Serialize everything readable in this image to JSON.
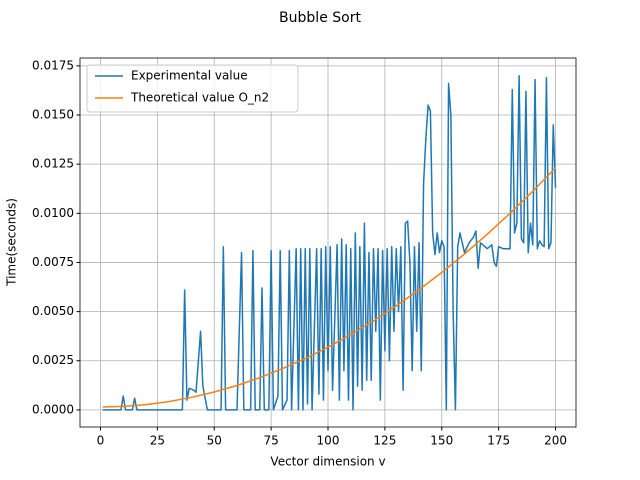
{
  "chart_data": {
    "type": "line",
    "title": "Bubble Sort",
    "xlabel": "Vector dimension v",
    "ylabel": "Time(seconds)",
    "xlim": [
      -9,
      209
    ],
    "ylim": [
      -0.00087,
      0.0179
    ],
    "xticks": [
      0,
      25,
      50,
      75,
      100,
      125,
      150,
      175,
      200
    ],
    "yticks": [
      {
        "value": 0,
        "label": "0.0000"
      },
      {
        "value": 0.0025,
        "label": "0.0025"
      },
      {
        "value": 0.005,
        "label": "0.0050"
      },
      {
        "value": 0.0075,
        "label": "0.0075"
      },
      {
        "value": 0.01,
        "label": "0.0100"
      },
      {
        "value": 0.0125,
        "label": "0.0125"
      },
      {
        "value": 0.015,
        "label": "0.0150"
      },
      {
        "value": 0.0175,
        "label": "0.0175"
      }
    ],
    "grid": true,
    "legend": "upper left",
    "series": [
      {
        "name": "Experimental value",
        "color": "#1f77b4",
        "x": [
          1,
          5,
          9,
          10,
          11,
          14,
          15,
          16,
          20,
          30,
          36,
          37,
          38,
          39,
          41,
          42,
          44,
          45,
          47,
          52,
          53,
          54,
          55,
          60,
          62,
          63,
          66,
          67,
          68,
          70,
          71,
          72,
          74,
          75,
          76,
          78,
          79,
          80,
          82,
          83,
          84,
          86,
          87,
          88,
          89,
          90,
          91,
          92,
          93,
          95,
          96,
          97,
          98,
          99,
          100,
          101,
          102,
          104,
          105,
          106,
          107,
          108,
          109,
          110,
          111,
          112,
          113,
          114,
          115,
          116,
          117,
          118,
          119,
          120,
          121,
          122,
          123,
          124,
          125,
          126,
          127,
          128,
          129,
          130,
          131,
          132,
          133,
          134,
          135,
          136,
          137,
          138,
          139,
          140,
          141,
          142,
          143,
          144,
          145,
          146,
          147,
          148,
          149,
          150,
          151,
          152,
          153,
          154,
          155,
          156,
          157,
          158,
          160,
          162,
          164,
          165,
          166,
          167,
          169,
          170,
          172,
          173,
          174,
          175,
          177,
          179,
          180,
          181,
          182,
          183,
          184,
          185,
          186,
          187,
          188,
          189,
          190,
          191,
          192,
          193,
          194,
          195,
          196,
          197,
          198,
          199,
          200
        ],
        "values": [
          0,
          0,
          0,
          0.0007,
          0,
          0,
          0.0006,
          0,
          0,
          0,
          0,
          0.0061,
          0.0005,
          0.0011,
          0.001,
          0.0009,
          0.004,
          0.0012,
          0,
          0,
          0,
          0.0083,
          0,
          0,
          0.008,
          0,
          0,
          0.0081,
          0,
          0,
          0.0062,
          0,
          0,
          0.0081,
          0,
          0.0007,
          0.0081,
          0,
          0.0005,
          0.0081,
          0,
          0.0082,
          0,
          0.0082,
          0,
          0.0082,
          0.0003,
          0.0082,
          0,
          0.0082,
          0.0008,
          0.0082,
          0.0005,
          0.0083,
          0.002,
          0.0083,
          0.001,
          0.0084,
          0.0005,
          0.0087,
          0.002,
          0.0084,
          0.0005,
          0.0082,
          0,
          0.009,
          0.0012,
          0.0083,
          0.001,
          0.0095,
          0.0015,
          0.008,
          0.0015,
          0.0082,
          0.004,
          0.0082,
          0.0005,
          0.0081,
          0.003,
          0.0082,
          0.0025,
          0.0083,
          0.004,
          0.0082,
          0.005,
          0.0083,
          0.001,
          0.0095,
          0.0096,
          0.0075,
          0.002,
          0.0083,
          0.004,
          0.0085,
          0.002,
          0.0115,
          0.0138,
          0.0155,
          0.0152,
          0.009,
          0.0079,
          0.009,
          0.008,
          0.0086,
          0.0083,
          0,
          0.0166,
          0.015,
          0.005,
          0,
          0.0083,
          0.009,
          0.008,
          0.0085,
          0.0088,
          0.0091,
          0.0072,
          0.0085,
          0.0083,
          0.0082,
          0.0084,
          0.0075,
          0.0073,
          0.0083,
          0.0082,
          0.0082,
          0.0082,
          0.0163,
          0.009,
          0.0095,
          0.017,
          0.0087,
          0.0085,
          0.0162,
          0.008,
          0.0095,
          0.0084,
          0.0168,
          0.0082,
          0.0086,
          0.0084,
          0.0083,
          0.0169,
          0.0082,
          0.0085,
          0.0145,
          0.0113
        ]
      },
      {
        "name": "Theoretical value O_n2",
        "color": "#ff7f0e",
        "x": [
          1,
          10,
          20,
          30,
          40,
          50,
          60,
          70,
          80,
          90,
          100,
          110,
          120,
          130,
          140,
          150,
          160,
          170,
          180,
          190,
          200
        ],
        "values": [
          0.00015,
          0.00018,
          0.00027,
          0.00042,
          0.00064,
          0.00091,
          0.00124,
          0.00164,
          0.0021,
          0.00261,
          0.00319,
          0.00383,
          0.00453,
          0.00529,
          0.00611,
          0.00699,
          0.00793,
          0.00894,
          0.01,
          0.01112,
          0.01231
        ]
      }
    ]
  }
}
